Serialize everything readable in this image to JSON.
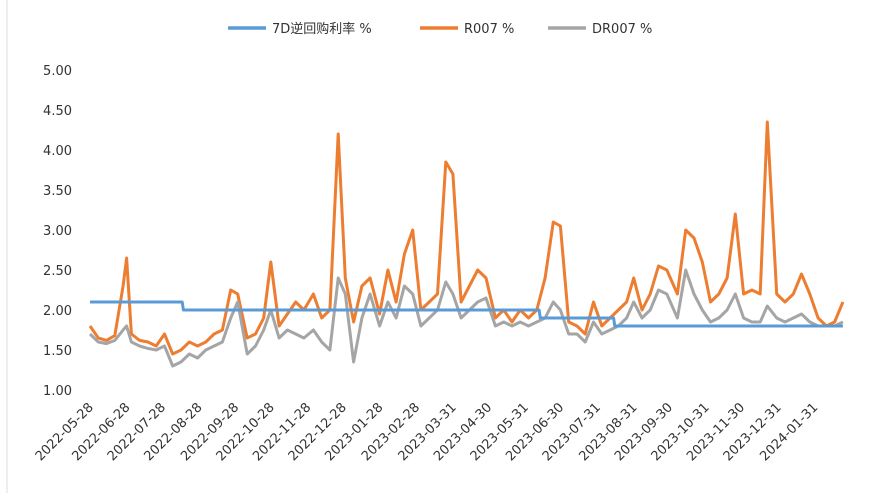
{
  "chart_data": {
    "type": "line",
    "xlim": [
      "2022-05-28",
      "2024-03-01"
    ],
    "ylim": [
      1,
      5
    ],
    "yticks": [
      {
        "value": 1,
        "label": "1.00"
      },
      {
        "value": 1.5,
        "label": "1.50"
      },
      {
        "value": 2,
        "label": "2.00"
      },
      {
        "value": 2.5,
        "label": "2.50"
      },
      {
        "value": 3,
        "label": "3.00"
      },
      {
        "value": 3.5,
        "label": "3.50"
      },
      {
        "value": 4,
        "label": "4.00"
      },
      {
        "value": 4.5,
        "label": "4.50"
      },
      {
        "value": 5,
        "label": "5.00"
      }
    ],
    "xticks": [
      "2022-05-28",
      "2022-06-28",
      "2022-07-28",
      "2022-08-28",
      "2022-09-28",
      "2022-10-28",
      "2022-11-28",
      "2022-12-28",
      "2023-01-28",
      "2023-02-28",
      "2023-03-31",
      "2023-04-30",
      "2023-05-31",
      "2023-06-30",
      "2023-07-31",
      "2023-08-31",
      "2023-09-30",
      "2023-10-31",
      "2023-11-30",
      "2023-12-31",
      "2024-01-31"
    ],
    "x": [
      "2022-05-28",
      "2022-06-04",
      "2022-06-11",
      "2022-06-18",
      "2022-06-25",
      "2022-06-28",
      "2022-07-02",
      "2022-07-09",
      "2022-07-16",
      "2022-07-23",
      "2022-07-30",
      "2022-08-06",
      "2022-08-13",
      "2022-08-20",
      "2022-08-27",
      "2022-09-03",
      "2022-09-10",
      "2022-09-17",
      "2022-09-24",
      "2022-09-30",
      "2022-10-08",
      "2022-10-15",
      "2022-10-22",
      "2022-10-28",
      "2022-11-04",
      "2022-11-11",
      "2022-11-18",
      "2022-11-25",
      "2022-12-03",
      "2022-12-10",
      "2022-12-17",
      "2022-12-24",
      "2022-12-30",
      "2023-01-06",
      "2023-01-13",
      "2023-01-20",
      "2023-01-28",
      "2023-02-04",
      "2023-02-11",
      "2023-02-18",
      "2023-02-25",
      "2023-03-04",
      "2023-03-11",
      "2023-03-18",
      "2023-03-25",
      "2023-03-31",
      "2023-04-07",
      "2023-04-14",
      "2023-04-21",
      "2023-04-28",
      "2023-05-06",
      "2023-05-13",
      "2023-05-20",
      "2023-05-27",
      "2023-06-03",
      "2023-06-10",
      "2023-06-17",
      "2023-06-24",
      "2023-06-30",
      "2023-07-07",
      "2023-07-14",
      "2023-07-21",
      "2023-07-28",
      "2023-08-04",
      "2023-08-11",
      "2023-08-18",
      "2023-08-25",
      "2023-08-31",
      "2023-09-07",
      "2023-09-14",
      "2023-09-21",
      "2023-09-28",
      "2023-10-07",
      "2023-10-14",
      "2023-10-21",
      "2023-10-28",
      "2023-11-04",
      "2023-11-11",
      "2023-11-18",
      "2023-11-25",
      "2023-12-02",
      "2023-12-09",
      "2023-12-16",
      "2023-12-22",
      "2023-12-30",
      "2024-01-06",
      "2024-01-13",
      "2024-01-20",
      "2024-01-27",
      "2024-02-03",
      "2024-02-10",
      "2024-02-17",
      "2024-02-24"
    ],
    "series": [
      {
        "name": "7D逆回购利率 %",
        "color": "#5b9bd5",
        "x": [
          "2022-05-28",
          "2022-08-14",
          "2022-08-15",
          "2023-06-12",
          "2023-06-13",
          "2023-08-14",
          "2023-08-15",
          "2024-02-24"
        ],
        "values": [
          2.1,
          2.1,
          2.0,
          2.0,
          1.9,
          1.9,
          1.8,
          1.8
        ]
      },
      {
        "name": "R007 %",
        "color": "#ed7d31",
        "values": [
          1.8,
          1.65,
          1.62,
          1.68,
          2.3,
          2.65,
          1.7,
          1.62,
          1.6,
          1.55,
          1.7,
          1.45,
          1.5,
          1.6,
          1.55,
          1.6,
          1.7,
          1.75,
          2.25,
          2.2,
          1.65,
          1.7,
          1.9,
          2.6,
          1.8,
          1.95,
          2.1,
          2.0,
          2.2,
          1.9,
          2.0,
          4.2,
          2.4,
          1.85,
          2.3,
          2.4,
          1.95,
          2.5,
          2.1,
          2.7,
          3.0,
          2.0,
          2.1,
          2.2,
          3.85,
          3.7,
          2.1,
          2.3,
          2.5,
          2.4,
          1.9,
          2.0,
          1.85,
          2.0,
          1.9,
          2.0,
          2.4,
          3.1,
          3.05,
          1.85,
          1.8,
          1.7,
          2.1,
          1.8,
          1.9,
          2.0,
          2.1,
          2.4,
          2.0,
          2.2,
          2.55,
          2.5,
          2.2,
          3.0,
          2.9,
          2.6,
          2.1,
          2.2,
          2.4,
          3.2,
          2.2,
          2.25,
          2.2,
          4.35,
          2.2,
          2.1,
          2.2,
          2.45,
          2.2,
          1.9,
          1.8,
          1.85,
          2.1
        ]
      },
      {
        "name": "DR007 %",
        "color": "#a5a5a5",
        "values": [
          1.7,
          1.6,
          1.58,
          1.62,
          1.75,
          1.8,
          1.6,
          1.55,
          1.52,
          1.5,
          1.55,
          1.3,
          1.35,
          1.45,
          1.4,
          1.5,
          1.55,
          1.6,
          1.9,
          2.1,
          1.45,
          1.55,
          1.75,
          2.0,
          1.65,
          1.75,
          1.7,
          1.65,
          1.75,
          1.6,
          1.5,
          2.4,
          2.2,
          1.35,
          1.9,
          2.2,
          1.8,
          2.1,
          1.9,
          2.3,
          2.2,
          1.8,
          1.9,
          2.0,
          2.35,
          2.2,
          1.9,
          2.0,
          2.1,
          2.15,
          1.8,
          1.85,
          1.8,
          1.85,
          1.8,
          1.85,
          1.9,
          2.1,
          2.0,
          1.7,
          1.7,
          1.6,
          1.85,
          1.7,
          1.75,
          1.8,
          1.9,
          2.1,
          1.9,
          2.0,
          2.25,
          2.2,
          1.9,
          2.5,
          2.2,
          2.0,
          1.85,
          1.9,
          2.0,
          2.2,
          1.9,
          1.85,
          1.85,
          2.05,
          1.9,
          1.85,
          1.9,
          1.95,
          1.85,
          1.8,
          1.8,
          1.8,
          1.85
        ]
      }
    ]
  }
}
